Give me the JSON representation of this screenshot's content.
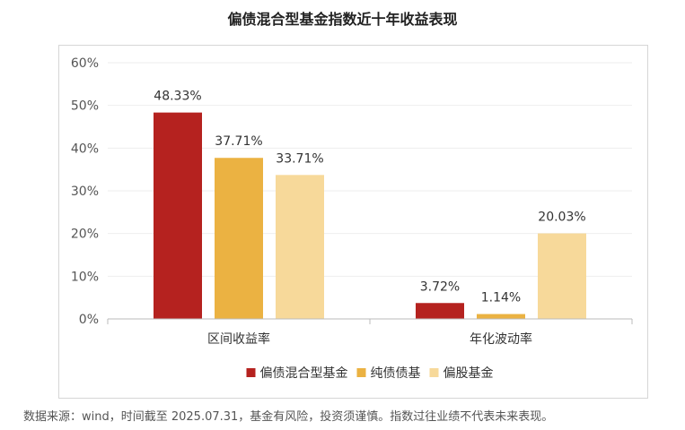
{
  "chart_data": {
    "type": "bar",
    "title": "偏债混合型基金指数近十年收益表现",
    "categories": [
      "区间收益率",
      "年化波动率"
    ],
    "series": [
      {
        "name": "偏债混合型基金",
        "values": [
          48.33,
          3.72
        ],
        "color": "#b5221f"
      },
      {
        "name": "纯债债基",
        "values": [
          37.71,
          1.14
        ],
        "color": "#ebb242"
      },
      {
        "name": "偏股基金",
        "values": [
          33.71,
          20.03
        ],
        "color": "#f7d99a"
      }
    ],
    "value_labels": [
      [
        "48.33%",
        "3.72%"
      ],
      [
        "37.71%",
        "1.14%"
      ],
      [
        "33.71%",
        "20.03%"
      ]
    ],
    "ylim": [
      0,
      60
    ],
    "yticks": [
      "0%",
      "10%",
      "20%",
      "30%",
      "40%",
      "50%",
      "60%"
    ],
    "grid": true,
    "legend_position": "bottom"
  },
  "footer": {
    "source_note": "数据来源：wind，时间截至 2025.07.31，基金有风险，投资须谨慎。指数过往业绩不代表未来表现。"
  }
}
